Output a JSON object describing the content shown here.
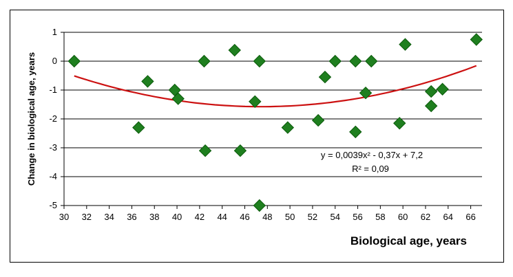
{
  "chart_data": {
    "type": "scatter",
    "xlabel": "Biological age, years",
    "ylabel": "Change in biological age, years",
    "xlim": [
      30,
      67
    ],
    "ylim": [
      -5,
      1
    ],
    "x_ticks": [
      30,
      32,
      34,
      36,
      38,
      40,
      42,
      44,
      46,
      48,
      50,
      52,
      54,
      56,
      58,
      60,
      62,
      64,
      66
    ],
    "y_ticks": [
      1,
      0,
      -1,
      -2,
      -3,
      -4,
      -5
    ],
    "grid": "horizontal",
    "points": [
      {
        "x": 30.9,
        "y": 0.0
      },
      {
        "x": 36.6,
        "y": -2.3
      },
      {
        "x": 37.4,
        "y": -0.7
      },
      {
        "x": 39.8,
        "y": -1.0
      },
      {
        "x": 40.1,
        "y": -1.3
      },
      {
        "x": 42.4,
        "y": 0.0
      },
      {
        "x": 42.5,
        "y": -3.1
      },
      {
        "x": 45.1,
        "y": 0.38
      },
      {
        "x": 45.6,
        "y": -3.1
      },
      {
        "x": 46.9,
        "y": -1.4
      },
      {
        "x": 47.3,
        "y": 0.0
      },
      {
        "x": 47.3,
        "y": -5.0
      },
      {
        "x": 49.8,
        "y": -2.3
      },
      {
        "x": 52.5,
        "y": -2.05
      },
      {
        "x": 53.1,
        "y": -0.55
      },
      {
        "x": 54.0,
        "y": 0.0
      },
      {
        "x": 55.8,
        "y": 0.0
      },
      {
        "x": 55.8,
        "y": -2.45
      },
      {
        "x": 56.7,
        "y": -1.1
      },
      {
        "x": 57.2,
        "y": 0.0
      },
      {
        "x": 59.7,
        "y": -2.15
      },
      {
        "x": 60.2,
        "y": 0.58
      },
      {
        "x": 62.5,
        "y": -1.05
      },
      {
        "x": 62.5,
        "y": -1.55
      },
      {
        "x": 63.5,
        "y": -0.97
      },
      {
        "x": 66.5,
        "y": 0.75
      }
    ],
    "trendline": {
      "type": "polynomial",
      "x_range": [
        30.9,
        66.5
      ],
      "equation": "y = 0,0039x² - 0,37x + 7,2",
      "r_squared": "R² = 0,09"
    },
    "colors": {
      "marker": "#1f7f1f",
      "marker_stroke": "#0a5a0a",
      "trendline": "#cc1111",
      "grid": "#000000"
    }
  }
}
